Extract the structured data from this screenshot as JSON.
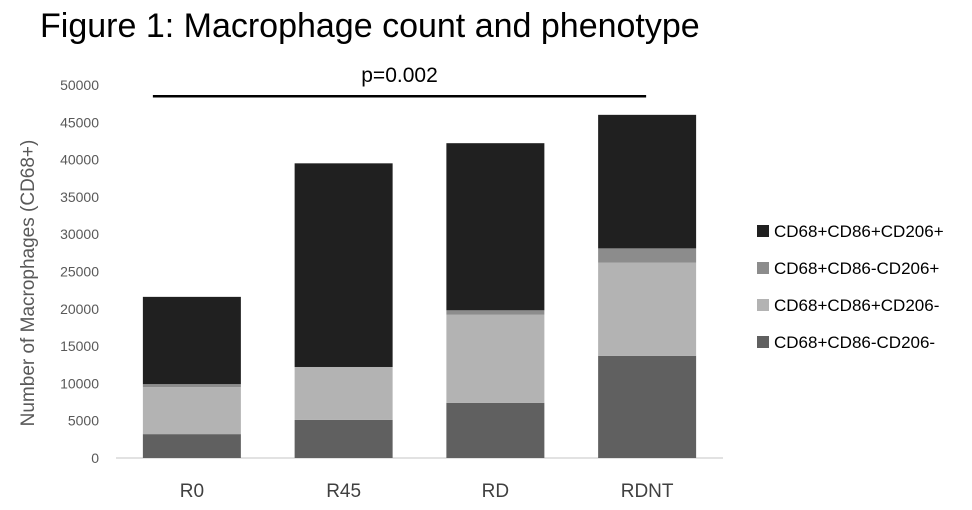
{
  "figure": {
    "title": "Figure 1: Macrophage count and phenotype"
  },
  "chart_data": {
    "type": "bar",
    "stacked": true,
    "categories": [
      "R0",
      "R45",
      "RD",
      "RDNT"
    ],
    "series": [
      {
        "name": "CD68+CD86-CD206-",
        "color": "#606060",
        "values": [
          3200,
          5100,
          7400,
          13700
        ]
      },
      {
        "name": "CD68+CD86+CD206-",
        "color": "#b3b3b3",
        "values": [
          6300,
          7100,
          11800,
          12500
        ]
      },
      {
        "name": "CD68+CD86-CD206+",
        "color": "#8c8c8c",
        "values": [
          400,
          0,
          600,
          1900
        ]
      },
      {
        "name": "CD68+CD86+CD206+",
        "color": "#202020",
        "values": [
          11700,
          27300,
          22400,
          17900
        ]
      }
    ],
    "ylabel": "Number of Macrophages (CD68+)",
    "xlabel": "",
    "ylim": [
      0,
      50000
    ],
    "yticks": [
      0,
      5000,
      10000,
      15000,
      20000,
      25000,
      30000,
      35000,
      40000,
      45000,
      50000
    ],
    "grid": false,
    "legend": {
      "placement": "right",
      "order": [
        "CD68+CD86+CD206+",
        "CD68+CD86-CD206+",
        "CD68+CD86+CD206-",
        "CD68+CD86-CD206-"
      ]
    },
    "annotations": [
      {
        "text": "p=0.002",
        "type": "bracket",
        "from": "R0",
        "to": "RDNT",
        "y": 48500
      }
    ]
  }
}
